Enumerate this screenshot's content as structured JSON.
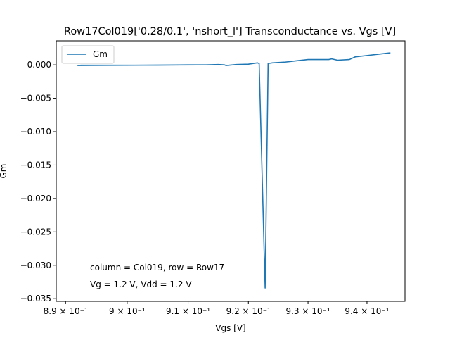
{
  "chart_data": {
    "type": "line",
    "title": "Row17Col019['0.28/0.1', 'nshort_l'] Transconductance vs. Vgs [V]",
    "xlabel": "Vgs [V]",
    "ylabel": "Gm",
    "xscale": "log",
    "xlim": [
      0.8885,
      0.9465
    ],
    "ylim": [
      -0.0354,
      0.0036
    ],
    "grid": false,
    "legend": "upper-left",
    "xticks": [
      {
        "value": 0.89,
        "label": "8.9 × 10⁻¹"
      },
      {
        "value": 0.9,
        "label": "9 × 10⁻¹"
      },
      {
        "value": 0.91,
        "label": "9.1 × 10⁻¹"
      },
      {
        "value": 0.92,
        "label": "9.2 × 10⁻¹"
      },
      {
        "value": 0.93,
        "label": "9.3 × 10⁻¹"
      },
      {
        "value": 0.94,
        "label": "9.4 × 10⁻¹"
      }
    ],
    "yticks": [
      {
        "value": 0.0,
        "label": "0.000"
      },
      {
        "value": -0.005,
        "label": "−0.005"
      },
      {
        "value": -0.01,
        "label": "−0.010"
      },
      {
        "value": -0.015,
        "label": "−0.015"
      },
      {
        "value": -0.02,
        "label": "−0.020"
      },
      {
        "value": -0.025,
        "label": "−0.025"
      },
      {
        "value": -0.03,
        "label": "−0.030"
      },
      {
        "value": -0.035,
        "label": "−0.035"
      }
    ],
    "series": [
      {
        "name": "Gm",
        "color": "#1f77b4",
        "x": [
          0.9115,
          0.892,
          0.8925,
          0.895,
          0.9,
          0.905,
          0.91,
          0.913,
          0.915,
          0.916,
          0.9163,
          0.918,
          0.92,
          0.9215,
          0.9218,
          0.9228,
          0.9233,
          0.924,
          0.926,
          0.928,
          0.93,
          0.932,
          0.9335,
          0.934,
          0.935,
          0.937,
          0.938,
          0.94,
          0.942,
          0.944
        ],
        "y": [
          0.0,
          -0.0001,
          -5e-05,
          -5e-05,
          -5e-05,
          -5e-05,
          0.0,
          0.0,
          5e-05,
          0.0,
          -0.0001,
          5e-05,
          0.0001,
          0.0003,
          0.0002,
          -0.0334,
          0.0002,
          0.0003,
          0.0004,
          0.0006,
          0.0008,
          0.0008,
          0.0008,
          0.0009,
          0.0007,
          0.0008,
          0.0012,
          0.0014,
          0.0016,
          0.0018
        ]
      }
    ],
    "annotations": [
      "column = Col019, row = Row17",
      "Vg = 1.2 V, Vdd = 1.2 V"
    ]
  }
}
